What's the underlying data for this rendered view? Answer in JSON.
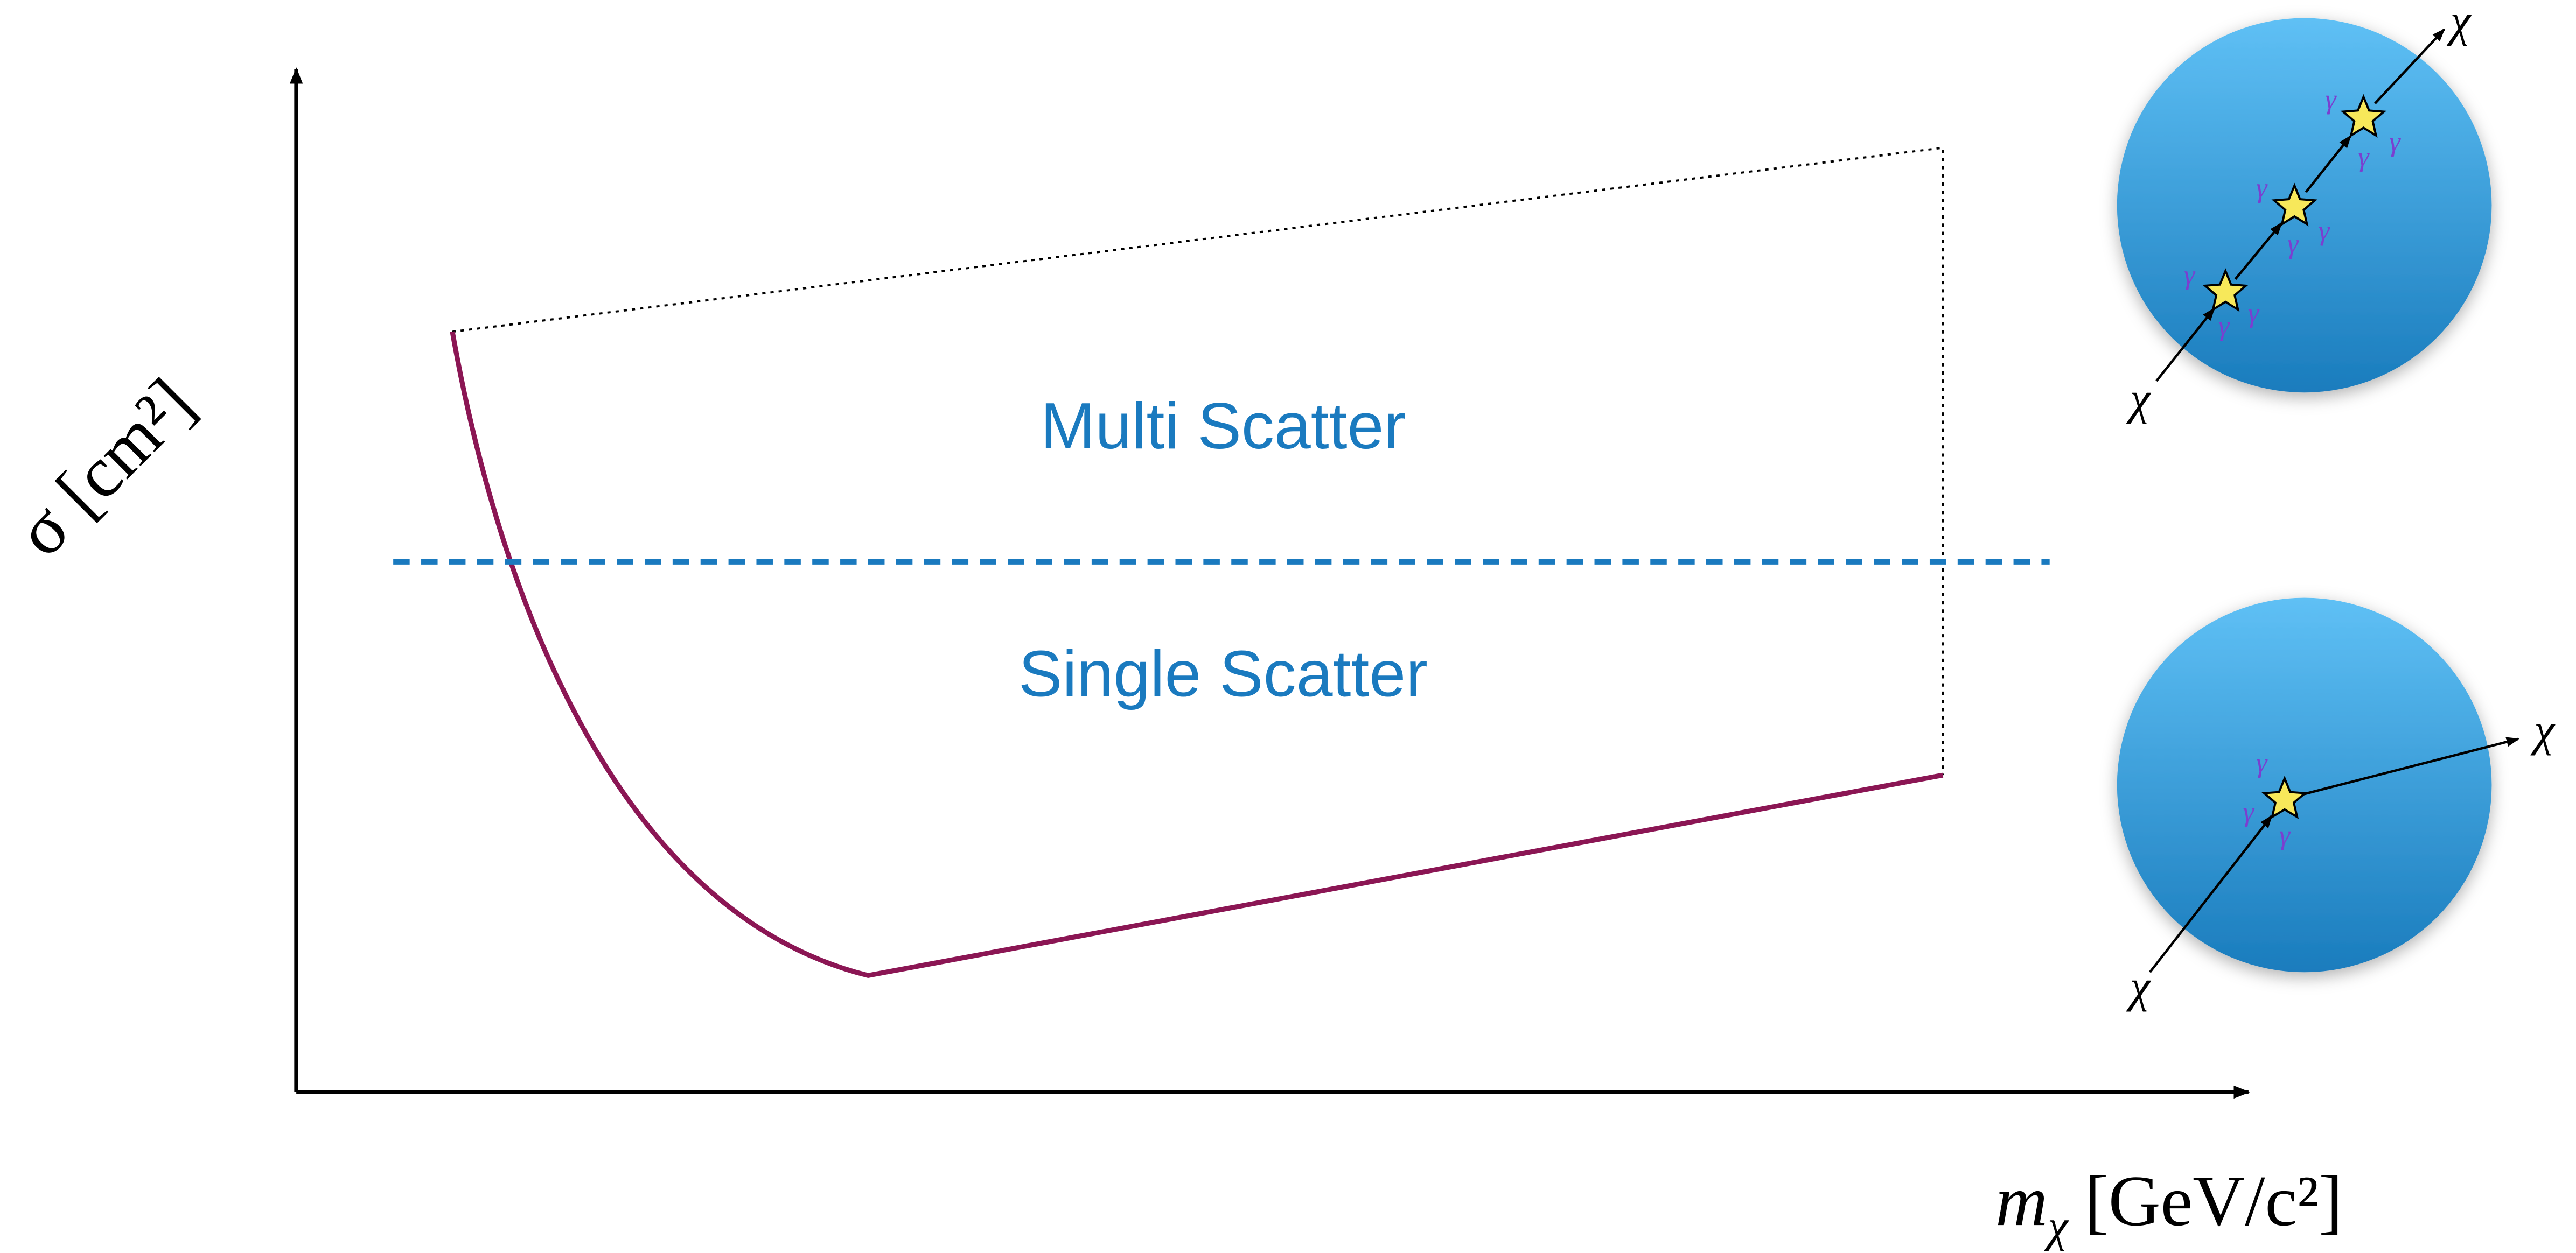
{
  "axes": {
    "y_label": "σ [cm²]",
    "x_label": {
      "base": "m",
      "subscript": "χ",
      "unit": "[GeV/c²]"
    }
  },
  "regions": {
    "upper": "Multi Scatter",
    "lower": "Single Scatter"
  },
  "insets": [
    {
      "incoming": "χ",
      "outgoing": "χ",
      "photons": [
        "γ",
        "γ",
        "γ",
        "γ",
        "γ",
        "γ",
        "γ",
        "γ",
        "γ"
      ]
    },
    {
      "incoming": "χ",
      "outgoing": "χ",
      "photons": [
        "γ",
        "γ",
        "γ"
      ]
    }
  ]
}
